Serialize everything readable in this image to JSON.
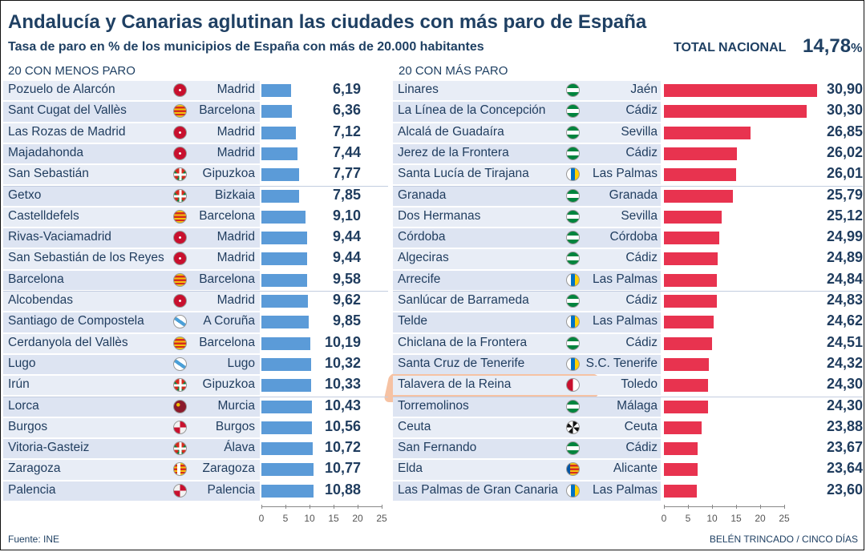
{
  "title": "Andalucía y Canarias aglutinan las ciudades con más paro de España",
  "subtitle": "Tasa de paro en % de los municipios de España con más de 20.000 habitantes",
  "total": {
    "label": "TOTAL NACIONAL",
    "value": "14,78",
    "unit": "%"
  },
  "footer": {
    "source": "Fuente: INE",
    "credit": "BELÉN TRINCADO / CINCO DÍAS"
  },
  "highlighted_city": "Talavera de la Reina",
  "chart_data": [
    {
      "type": "bar",
      "orientation": "horizontal",
      "panel_title": "20 CON MENOS PARO",
      "color": "#5b9bd8",
      "xlim": [
        0,
        25
      ],
      "xticks": [
        "0",
        "5",
        "10",
        "15",
        "20",
        "25"
      ],
      "rows": [
        {
          "city": "Pozuelo de Alarcón",
          "province": "Madrid",
          "flag": "madrid",
          "value": 6.19,
          "label": "6,19"
        },
        {
          "city": "Sant Cugat del Vallès",
          "province": "Barcelona",
          "flag": "cataluna",
          "value": 6.36,
          "label": "6,36"
        },
        {
          "city": "Las Rozas de Madrid",
          "province": "Madrid",
          "flag": "madrid",
          "value": 7.12,
          "label": "7,12"
        },
        {
          "city": "Majadahonda",
          "province": "Madrid",
          "flag": "madrid",
          "value": 7.44,
          "label": "7,44"
        },
        {
          "city": "San Sebastián",
          "province": "Gipuzkoa",
          "flag": "euskadi",
          "value": 7.77,
          "label": "7,77"
        },
        {
          "city": "Getxo",
          "province": "Bizkaia",
          "flag": "euskadi",
          "value": 7.85,
          "label": "7,85"
        },
        {
          "city": "Castelldefels",
          "province": "Barcelona",
          "flag": "cataluna",
          "value": 9.1,
          "label": "9,10"
        },
        {
          "city": "Rivas-Vaciamadrid",
          "province": "Madrid",
          "flag": "madrid",
          "value": 9.44,
          "label": "9,44"
        },
        {
          "city": "San Sebastián de los Reyes",
          "province": "Madrid",
          "flag": "madrid",
          "value": 9.44,
          "label": "9,44"
        },
        {
          "city": "Barcelona",
          "province": "Barcelona",
          "flag": "cataluna",
          "value": 9.58,
          "label": "9,58"
        },
        {
          "city": "Alcobendas",
          "province": "Madrid",
          "flag": "madrid",
          "value": 9.62,
          "label": "9,62"
        },
        {
          "city": "Santiago de Compostela",
          "province": "A Coruña",
          "flag": "galicia",
          "value": 9.85,
          "label": "9,85"
        },
        {
          "city": "Cerdanyola del Vallès",
          "province": "Barcelona",
          "flag": "cataluna",
          "value": 10.19,
          "label": "10,19"
        },
        {
          "city": "Lugo",
          "province": "Lugo",
          "flag": "galicia",
          "value": 10.32,
          "label": "10,32"
        },
        {
          "city": "Irún",
          "province": "Gipuzkoa",
          "flag": "euskadi",
          "value": 10.33,
          "label": "10,33"
        },
        {
          "city": "Lorca",
          "province": "Murcia",
          "flag": "murcia",
          "value": 10.43,
          "label": "10,43"
        },
        {
          "city": "Burgos",
          "province": "Burgos",
          "flag": "castillaleon",
          "value": 10.56,
          "label": "10,56"
        },
        {
          "city": "Vitoria-Gasteiz",
          "province": "Álava",
          "flag": "euskadi",
          "value": 10.72,
          "label": "10,72"
        },
        {
          "city": "Zaragoza",
          "province": "Zaragoza",
          "flag": "aragon",
          "value": 10.77,
          "label": "10,77"
        },
        {
          "city": "Palencia",
          "province": "Palencia",
          "flag": "castillaleon",
          "value": 10.88,
          "label": "10,88"
        }
      ]
    },
    {
      "type": "bar",
      "orientation": "horizontal",
      "panel_title": "20 CON MÁS PARO",
      "color": "#e8334f",
      "xlim": [
        0,
        25
      ],
      "xticks": [
        "0",
        "5",
        "10",
        "15",
        "20",
        "25"
      ],
      "rows": [
        {
          "city": "Linares",
          "province": "Jaén",
          "flag": "andalucia",
          "value": 30.9,
          "label": "30,90"
        },
        {
          "city": "La Línea de la Concepción",
          "province": "Cádiz",
          "flag": "andalucia",
          "value": 30.3,
          "label": "30,30"
        },
        {
          "city": "Alcalá de Guadaíra",
          "province": "Sevilla",
          "flag": "andalucia",
          "value": 26.85,
          "label": "26,85"
        },
        {
          "city": "Jerez de la Frontera",
          "province": "Cádiz",
          "flag": "andalucia",
          "value": 26.02,
          "label": "26,02"
        },
        {
          "city": "Santa Lucía de Tirajana",
          "province": "Las Palmas",
          "flag": "canarias",
          "value": 26.01,
          "label": "26,01"
        },
        {
          "city": "Granada",
          "province": "Granada",
          "flag": "andalucia",
          "value": 25.79,
          "label": "25,79"
        },
        {
          "city": "Dos Hermanas",
          "province": "Sevilla",
          "flag": "andalucia",
          "value": 25.12,
          "label": "25,12"
        },
        {
          "city": "Córdoba",
          "province": "Córdoba",
          "flag": "andalucia",
          "value": 24.99,
          "label": "24,99"
        },
        {
          "city": "Algeciras",
          "province": "Cádiz",
          "flag": "andalucia",
          "value": 24.89,
          "label": "24,89"
        },
        {
          "city": "Arrecife",
          "province": "Las Palmas",
          "flag": "canarias",
          "value": 24.84,
          "label": "24,84"
        },
        {
          "city": "Sanlúcar de Barrameda",
          "province": "Cádiz",
          "flag": "andalucia",
          "value": 24.83,
          "label": "24,83"
        },
        {
          "city": "Telde",
          "province": "Las Palmas",
          "flag": "canarias",
          "value": 24.62,
          "label": "24,62"
        },
        {
          "city": "Chiclana de la Frontera",
          "province": "Cádiz",
          "flag": "andalucia",
          "value": 24.51,
          "label": "24,51"
        },
        {
          "city": "Santa Cruz de Tenerife",
          "province": "S.C. Tenerife",
          "flag": "canarias",
          "value": 24.32,
          "label": "24,32"
        },
        {
          "city": "Talavera de la Reina",
          "province": "Toledo",
          "flag": "castillalamancha",
          "value": 24.3,
          "label": "24,30"
        },
        {
          "city": "Torremolinos",
          "province": "Málaga",
          "flag": "andalucia",
          "value": 24.3,
          "label": "24,30"
        },
        {
          "city": "Ceuta",
          "province": "Ceuta",
          "flag": "ceuta",
          "value": 23.88,
          "label": "23,88"
        },
        {
          "city": "San Fernando",
          "province": "Cádiz",
          "flag": "andalucia",
          "value": 23.67,
          "label": "23,67"
        },
        {
          "city": "Elda",
          "province": "Alicante",
          "flag": "valencia",
          "value": 23.64,
          "label": "23,64"
        },
        {
          "city": "Las Palmas de Gran Canaria",
          "province": "Las Palmas",
          "flag": "canarias",
          "value": 23.6,
          "label": "23,60"
        }
      ]
    }
  ]
}
